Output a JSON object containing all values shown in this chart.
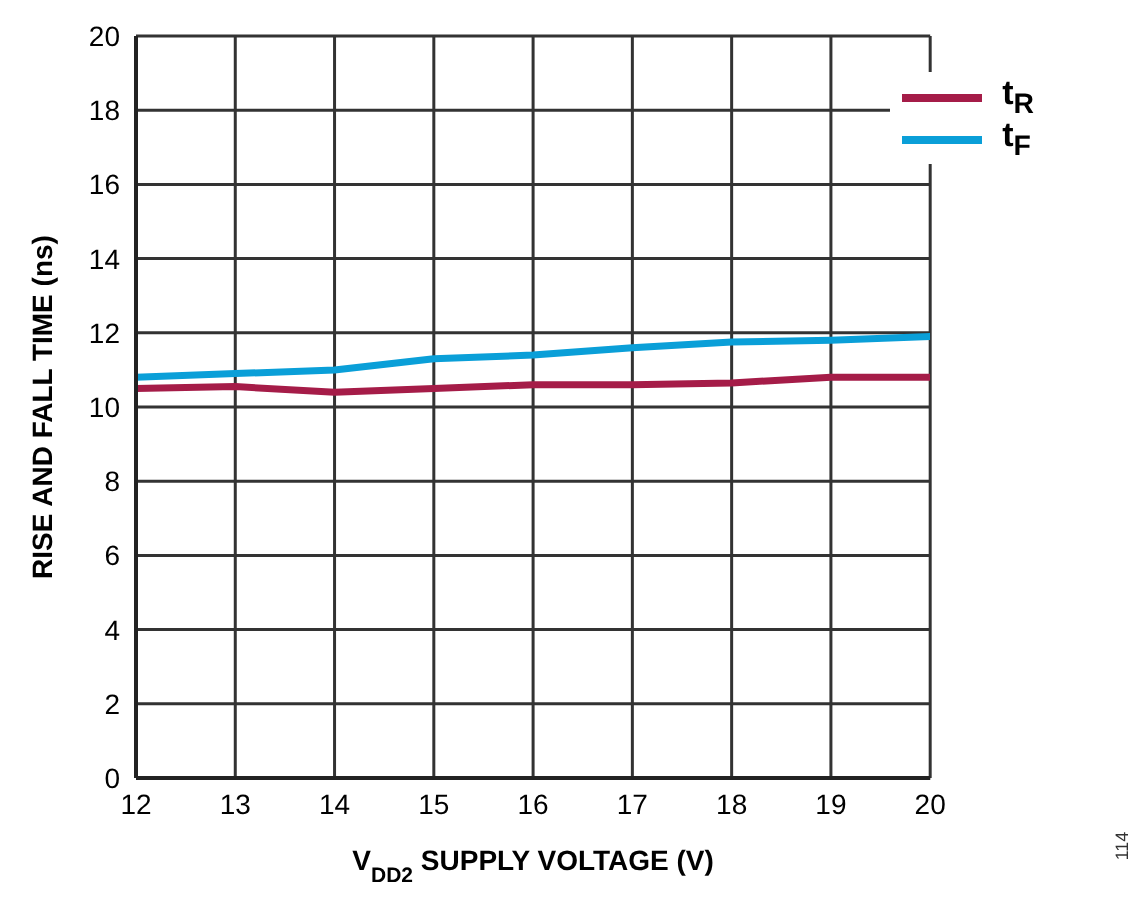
{
  "chart_data": {
    "type": "line",
    "xlabel": "V$_{DD2}$ SUPPLY VOLTAGE (V)",
    "ylabel": "RISE AND FALL TIME (ns)",
    "x": [
      12,
      13,
      14,
      15,
      16,
      17,
      18,
      19,
      20
    ],
    "series": [
      {
        "name": "t$_{R}$",
        "color": "#a51c48",
        "values": [
          10.5,
          10.55,
          10.4,
          10.5,
          10.6,
          10.6,
          10.65,
          10.8,
          10.8
        ]
      },
      {
        "name": "t$_{F}$",
        "color": "#0a9fd8",
        "values": [
          10.8,
          10.9,
          11.0,
          11.3,
          11.4,
          11.6,
          11.75,
          11.8,
          11.9
        ]
      }
    ],
    "xlim": [
      12,
      20
    ],
    "xticks": [
      12,
      13,
      14,
      15,
      16,
      17,
      18,
      19,
      20
    ],
    "ylim": [
      0,
      20
    ],
    "yticks": [
      0,
      2,
      4,
      6,
      8,
      10,
      12,
      14,
      16,
      18,
      20
    ],
    "grid": true,
    "legend": "top right",
    "marker": "none",
    "line_style": "solid",
    "annotations": [
      "114"
    ]
  }
}
